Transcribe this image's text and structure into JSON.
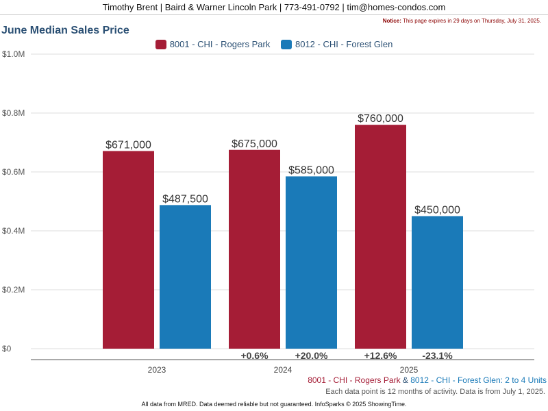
{
  "header": {
    "agent_line": "Timothy Brent | Baird & Warner Lincoln Park | 773-491-0792 | tim@homes-condos.com"
  },
  "notice": {
    "label": "Notice:",
    "text": "This page expires in 29 days on Thursday, July 31, 2025."
  },
  "units_note": {
    "series1": "8001 - CHI - Rogers Park",
    "amp": " & ",
    "series2": "8012 - CHI - Forest Glen: 2 to 4 Units"
  },
  "activity_note": "Each data point is 12 months of activity. Data is from July 1, 2025.",
  "footer": "All data from MRED. Data deemed reliable but not guaranteed. InfoSparks © 2025 ShowingTime.",
  "colors": {
    "series1": "#a51d36",
    "series2": "#1a7ab8",
    "title": "#2a4f73"
  },
  "chart_data": {
    "type": "bar",
    "title": "June Median Sales Price",
    "categories": [
      "2023",
      "2024",
      "2025"
    ],
    "series": [
      {
        "name": "8001 - CHI - Rogers Park",
        "values": [
          671000,
          675000,
          760000
        ],
        "value_labels": [
          "$671,000",
          "$675,000",
          "$760,000"
        ],
        "change_labels": [
          "",
          "+0.6%",
          "+12.6%"
        ]
      },
      {
        "name": "8012 - CHI - Forest Glen",
        "values": [
          487500,
          585000,
          450000
        ],
        "value_labels": [
          "$487,500",
          "$585,000",
          "$450,000"
        ],
        "change_labels": [
          "",
          "+20.0%",
          "-23.1%"
        ]
      }
    ],
    "ylim": [
      0,
      1000000
    ],
    "yticks": [
      0,
      200000,
      400000,
      600000,
      800000,
      1000000
    ],
    "ytick_labels": [
      "$0",
      "$0.2M",
      "$0.4M",
      "$0.6M",
      "$0.8M",
      "$1.0M"
    ],
    "grid": true,
    "legend_position": "top-center"
  }
}
